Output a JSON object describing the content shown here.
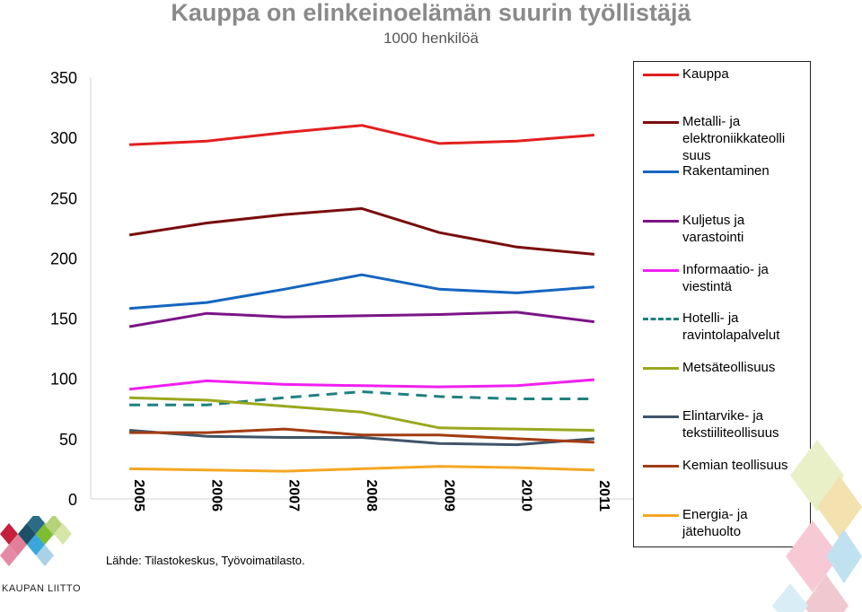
{
  "chart_data": {
    "type": "line",
    "title": "Kauppa on elinkeinoelämän suurin työllistäjä",
    "subtitle": "1000 henkilöä",
    "categories": [
      "2005",
      "2006",
      "2007",
      "2008",
      "2009",
      "2010",
      "2011"
    ],
    "ylim": [
      0,
      350
    ],
    "yticks": [
      "0",
      "50",
      "100",
      "150",
      "200",
      "250",
      "300",
      "350"
    ],
    "ytick_values": [
      0,
      50,
      100,
      150,
      200,
      250,
      300,
      350
    ],
    "grid": false,
    "legend_position": "right",
    "series": [
      {
        "name": "Kauppa",
        "color": "#e31f1f",
        "dashed": false,
        "values": [
          294,
          297,
          304,
          310,
          295,
          297,
          302
        ]
      },
      {
        "name": "Metalli- ja elektroniikkateollisuus",
        "color": "#7a0c0c",
        "dashed": false,
        "values": [
          219,
          229,
          236,
          241,
          221,
          209,
          203
        ]
      },
      {
        "name": "Rakentaminen",
        "color": "#1565c0",
        "dashed": false,
        "values": [
          158,
          163,
          174,
          186,
          174,
          171,
          176
        ]
      },
      {
        "name": "Kuljetus ja varastointi",
        "color": "#7b1486",
        "dashed": false,
        "values": [
          143,
          154,
          151,
          152,
          153,
          155,
          147
        ]
      },
      {
        "name": "Informaatio- ja viestintä",
        "color": "#f020f0",
        "dashed": false,
        "values": [
          91,
          98,
          95,
          94,
          93,
          94,
          99
        ]
      },
      {
        "name": "Hotelli- ja ravintolapalvelut",
        "color": "#1f8080",
        "dashed": true,
        "values": [
          78,
          78,
          84,
          89,
          85,
          83,
          83
        ]
      },
      {
        "name": "Metsäteollisuus",
        "color": "#9aa81e",
        "dashed": false,
        "values": [
          84,
          82,
          77,
          72,
          59,
          58,
          57
        ]
      },
      {
        "name": "Elintarvike- ja tekstiiliteollisuus",
        "color": "#3f5468",
        "dashed": false,
        "values": [
          57,
          52,
          51,
          51,
          46,
          45,
          50
        ]
      },
      {
        "name": "Kemian teollisuus",
        "color": "#a33c12",
        "dashed": false,
        "values": [
          55,
          55,
          58,
          53,
          53,
          50,
          47
        ]
      },
      {
        "name": "Energia- ja jätehuolto",
        "color": "#f5a623",
        "dashed": false,
        "values": [
          25,
          24,
          23,
          25,
          27,
          26,
          24
        ]
      }
    ],
    "legend_labels": [
      "Kauppa",
      "Metalli- ja elektroniikkateolli suus",
      "Rakentaminen",
      "Kuljetus ja varastointi",
      "Informaatio- ja viestintä",
      "Hotelli- ja ravintolapalvelut",
      "Metsäteollisuus",
      "Elintarvike- ja tekstiiliteollisuus",
      "Kemian teollisuus",
      "Energia- ja jätehuolto"
    ]
  },
  "source": "Lähde: Tilastokeskus, Työvoimatilasto.",
  "logo": {
    "text": "KAUPAN LIITTO"
  }
}
